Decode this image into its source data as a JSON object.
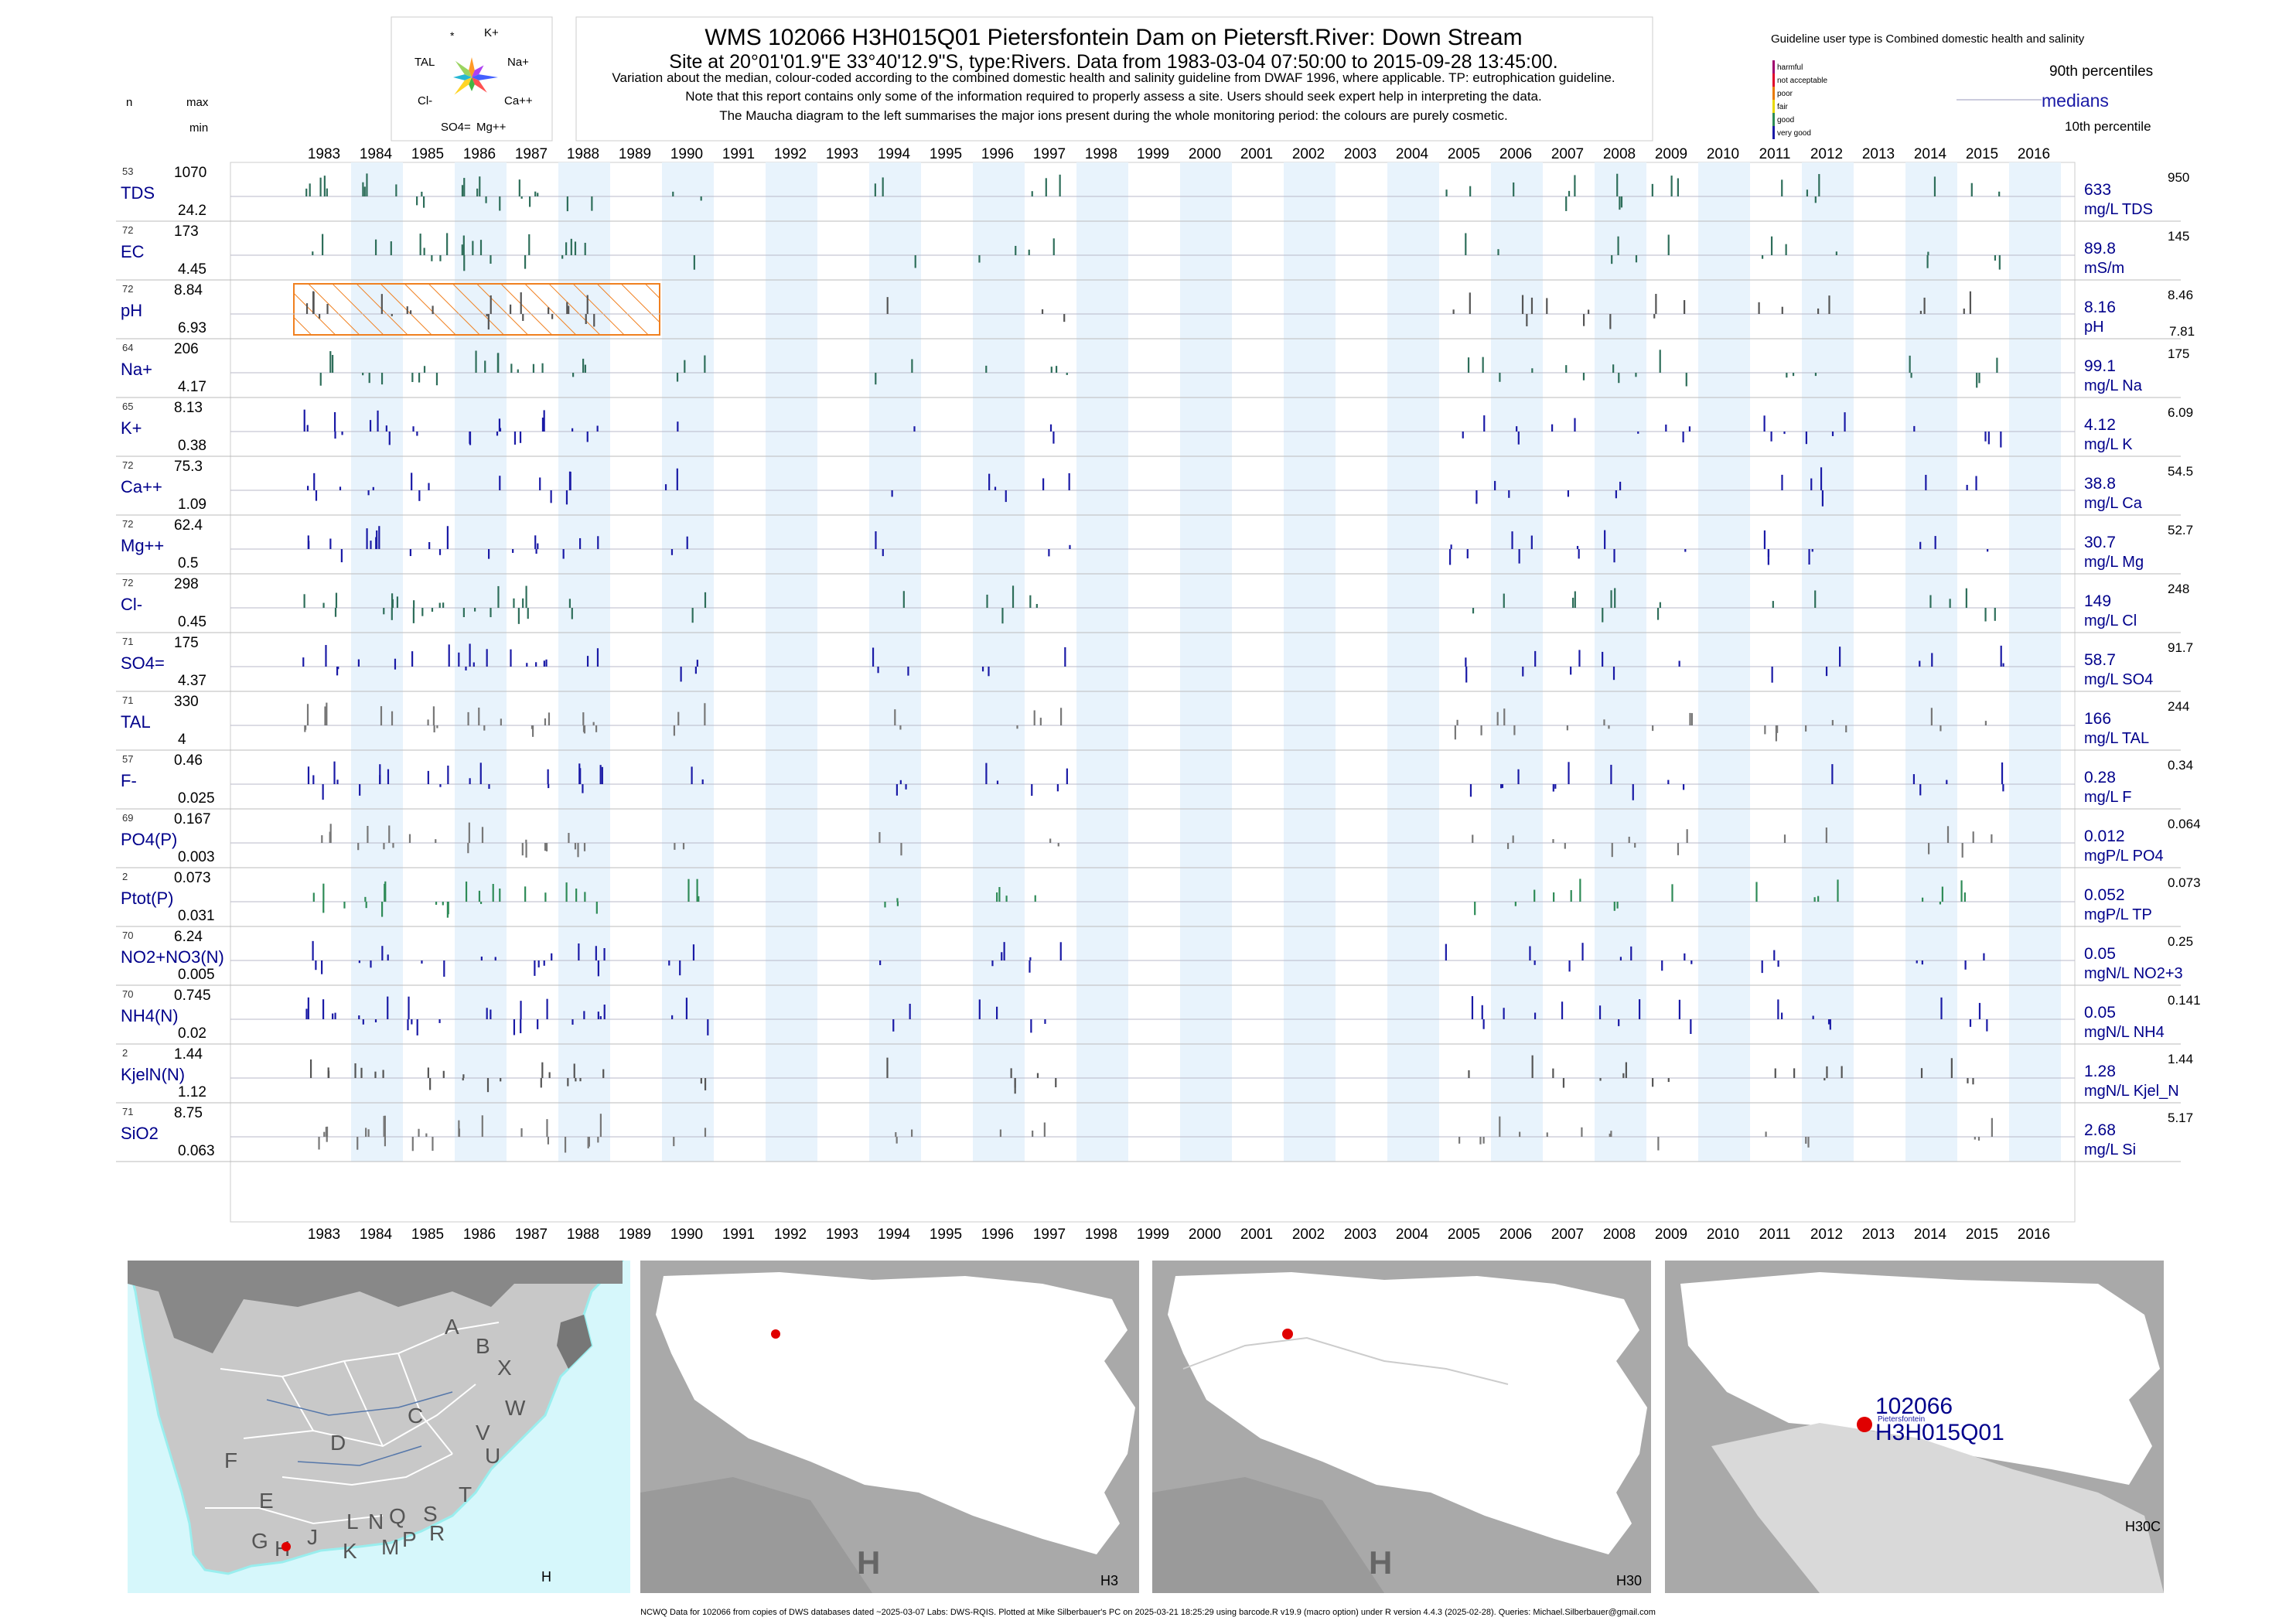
{
  "header": {
    "title": "WMS 102066 H3H015Q01 Pietersfontein Dam on Pietersft.River: Down Stream",
    "subtitle": "Site at 20°01'01.9\"E 33°40'12.9\"S, type:Rivers.  Data from 1983-03-04 07:50:00 to 2015-09-28 13:45:00.",
    "note1": "Variation about the median,  colour-coded according to the combined domestic health and salinity guideline from DWAF 1996, where applicable. TP: eutrophication guideline.",
    "note2": "Note that this report contains only some of the information required to properly assess a site. Users should seek expert help in interpreting the data.",
    "note3": "The Maucha diagram to the left summarises the major ions present during the whole monitoring period: the colours are purely cosmetic."
  },
  "maucha": {
    "labels": [
      "*",
      "K+",
      "TAL",
      "Na+",
      "Cl-",
      "Ca++",
      "SO4=",
      "Mg++"
    ]
  },
  "legend": {
    "guideline": "Guideline user type is Combined domestic health and salinity",
    "classes": [
      {
        "label": "harmful",
        "color": "#a0006e"
      },
      {
        "label": "not acceptable",
        "color": "#e0002a"
      },
      {
        "label": "poor",
        "color": "#e87a00"
      },
      {
        "label": "fair",
        "color": "#e8d800"
      },
      {
        "label": "good",
        "color": "#2e8b57"
      },
      {
        "label": "very good",
        "color": "#1a1aa6"
      }
    ],
    "p90": "90th percentiles",
    "medians": "medians",
    "p10": "10th percentile"
  },
  "left_header": {
    "n": "n",
    "max": "max",
    "min": "min"
  },
  "chart_data": {
    "type": "bar",
    "x_years": [
      1983,
      1984,
      1985,
      1986,
      1987,
      1988,
      1989,
      1990,
      1991,
      1992,
      1993,
      1994,
      1995,
      1996,
      1997,
      1998,
      1999,
      2000,
      2001,
      2002,
      2003,
      2004,
      2005,
      2006,
      2007,
      2008,
      2009,
      2010,
      2011,
      2012,
      2013,
      2014,
      2015,
      2016
    ],
    "xlim": [
      "1983-01-01",
      "2016-12-31"
    ],
    "period": {
      "start": "1983-03-04 07:50:00",
      "end": "2015-09-28 13:45:00"
    },
    "ph_flag_range": [
      1983.0,
      1990.0
    ],
    "series": [
      {
        "name": "TDS",
        "n": "53",
        "max": "1070",
        "min": "24.2",
        "median": "633",
        "unit": "mg/L TDS",
        "p90": "950",
        "p10": "",
        "color": "#2e6e5a"
      },
      {
        "name": "EC",
        "n": "72",
        "max": "173",
        "min": "4.45",
        "median": "89.8",
        "unit": "mS/m",
        "p90": "145",
        "p10": "",
        "color": "#2e6e5a"
      },
      {
        "name": "pH",
        "n": "72",
        "max": "8.84",
        "min": "6.93",
        "median": "8.16",
        "unit": "pH",
        "p90": "8.46",
        "p10": "7.81",
        "color": "#555555"
      },
      {
        "name": "Na+",
        "n": "64",
        "max": "206",
        "min": "4.17",
        "median": "99.1",
        "unit": "mg/L Na",
        "p90": "175",
        "p10": "",
        "color": "#2e6e5a"
      },
      {
        "name": "K+",
        "n": "65",
        "max": "8.13",
        "min": "0.38",
        "median": "4.12",
        "unit": "mg/L K",
        "p90": "6.09",
        "p10": "",
        "color": "#1a1aa6"
      },
      {
        "name": "Ca++",
        "n": "72",
        "max": "75.3",
        "min": "1.09",
        "median": "38.8",
        "unit": "mg/L Ca",
        "p90": "54.5",
        "p10": "",
        "color": "#1a1aa6"
      },
      {
        "name": "Mg++",
        "n": "72",
        "max": "62.4",
        "min": "0.5",
        "median": "30.7",
        "unit": "mg/L Mg",
        "p90": "52.7",
        "p10": "",
        "color": "#1a1aa6"
      },
      {
        "name": "Cl-",
        "n": "72",
        "max": "298",
        "min": "0.45",
        "median": "149",
        "unit": "mg/L Cl",
        "p90": "248",
        "p10": "",
        "color": "#2e6e5a"
      },
      {
        "name": "SO4=",
        "n": "71",
        "max": "175",
        "min": "4.37",
        "median": "58.7",
        "unit": "mg/L SO4",
        "p90": "91.7",
        "p10": "",
        "color": "#1a1aa6"
      },
      {
        "name": "TAL",
        "n": "71",
        "max": "330",
        "min": "4",
        "median": "166",
        "unit": "mg/L TAL",
        "p90": "244",
        "p10": "",
        "color": "#777777"
      },
      {
        "name": "F-",
        "n": "57",
        "max": "0.46",
        "min": "0.025",
        "median": "0.28",
        "unit": "mg/L F",
        "p90": "0.34",
        "p10": "",
        "color": "#1a1aa6"
      },
      {
        "name": "PO4(P)",
        "n": "69",
        "max": "0.167",
        "min": "0.003",
        "median": "0.012",
        "unit": "mgP/L PO4",
        "p90": "0.064",
        "p10": "",
        "color": "#777777"
      },
      {
        "name": "Ptot(P)",
        "n": "2",
        "max": "0.073",
        "min": "0.031",
        "median": "0.052",
        "unit": "mgP/L TP",
        "p90": "0.073",
        "p10": "",
        "color": "#2e8b57"
      },
      {
        "name": "NO2+NO3(N)",
        "n": "70",
        "max": "6.24",
        "min": "0.005",
        "median": "0.05",
        "unit": "mgN/L NO2+3",
        "p90": "0.25",
        "p10": "",
        "color": "#1a1aa6"
      },
      {
        "name": "NH4(N)",
        "n": "70",
        "max": "0.745",
        "min": "0.02",
        "median": "0.05",
        "unit": "mgN/L NH4",
        "p90": "0.141",
        "p10": "",
        "color": "#1a1aa6"
      },
      {
        "name": "KjelN(N)",
        "n": "2",
        "max": "1.44",
        "min": "1.12",
        "median": "1.28",
        "unit": "mgN/L Kjel_N",
        "p90": "1.44",
        "p10": "",
        "color": "#555555"
      },
      {
        "name": "SiO2",
        "n": "71",
        "max": "8.75",
        "min": "0.063",
        "median": "2.68",
        "unit": "mg/L Si",
        "p90": "5.17",
        "p10": "",
        "color": "#777777"
      }
    ]
  },
  "maps": {
    "regions": [
      "A",
      "B",
      "X",
      "W",
      "C",
      "V",
      "U",
      "D",
      "T",
      "F",
      "E",
      "S",
      "R",
      "L",
      "N",
      "Q",
      "J",
      "K",
      "M",
      "P",
      "G",
      "H"
    ],
    "panel_labels": [
      "H",
      "H3",
      "H30",
      "H30C"
    ],
    "big_labels": [
      "H",
      "H"
    ],
    "site_id": "102066",
    "site_code": "H3H015Q01",
    "site_name": "Pietersfontein",
    "land_color": "#c8c8c8",
    "sea_color": "#d6f7fb",
    "site_color": "#e00000"
  },
  "footer": "NCWQ Data for 102066 from copies of DWS databases dated ~2025-03-07 Labs: DWS-RQIS. Plotted at Mike Silberbauer's PC on 2025-03-21 18:25:29 using barcode.R v19.9 (macro option) under R version 4.4.3 (2025-02-28). Queries: Michael.Silberbauer@gmail.com"
}
